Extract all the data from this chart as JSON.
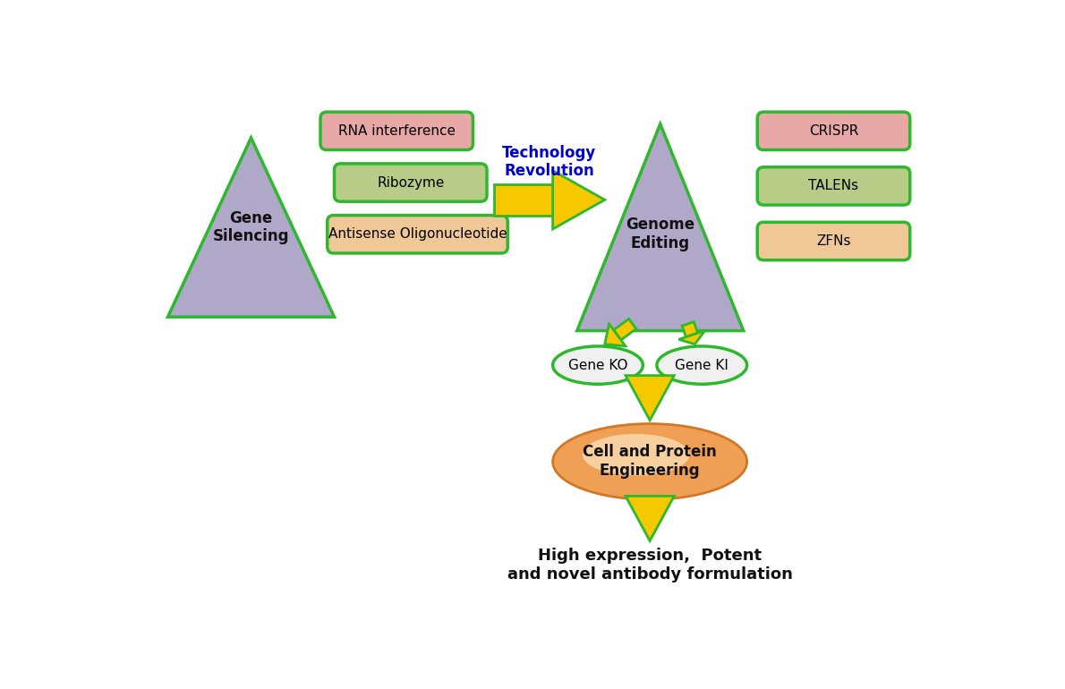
{
  "bg_color": "#ffffff",
  "triangle_color": "#b0a8c8",
  "triangle_edge_color": "#2db82d",
  "triangle_edge_width": 2.5,
  "box_rna_color": "#e8a8a8",
  "box_ribo_color": "#b8cc88",
  "box_anti_color": "#f0c898",
  "box_crispr_color": "#e8a8a8",
  "box_talens_color": "#b8cc88",
  "box_zfns_color": "#f0c898",
  "box_edge_color": "#2db82d",
  "box_edge_width": 2.5,
  "ellipse_ko_color": "#f0f0f0",
  "ellipse_ki_color": "#f0f0f0",
  "ellipse_edge_color": "#2db82d",
  "ellipse_edge_width": 2.5,
  "big_ellipse_color": "#f0a055",
  "big_ellipse_edge_color": "#d07828",
  "big_ellipse_edge_width": 2.0,
  "arrow_fill_color": "#f5c800",
  "arrow_edge_color": "#2db82d",
  "arrow_edge_width": 2.0,
  "title_text": "Technology\nRevolution",
  "title_color": "#0000cc",
  "title_fontsize": 12,
  "gene_silencing_text": "Gene\nSilencing",
  "genome_editing_text": "Genome\nEditing",
  "rna_text": "RNA interference",
  "ribo_text": "Ribozyme",
  "anti_text": "Antisense Oligonucleotide",
  "crispr_text": "CRISPR",
  "talens_text": "TALENs",
  "zfns_text": "ZFNs",
  "gene_ko_text": "Gene KO",
  "gene_ki_text": "Gene KI",
  "cell_protein_text": "Cell and Protein\nEngineering",
  "bottom_text": "High expression,  Potent\nand novel antibody formulation",
  "text_fontsize": 11,
  "bold_fontsize": 12,
  "label_fontsize": 13
}
